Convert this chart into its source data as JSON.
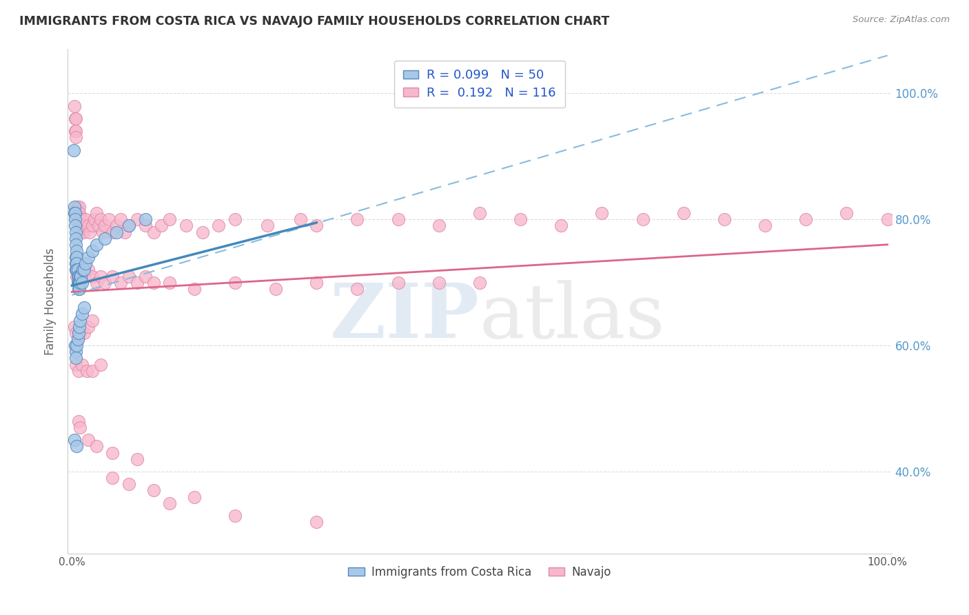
{
  "title": "IMMIGRANTS FROM COSTA RICA VS NAVAJO FAMILY HOUSEHOLDS CORRELATION CHART",
  "source": "Source: ZipAtlas.com",
  "ylabel": "Family Households",
  "ytick_labels": [
    "40.0%",
    "60.0%",
    "80.0%",
    "100.0%"
  ],
  "ytick_values": [
    0.4,
    0.6,
    0.8,
    1.0
  ],
  "legend_text1": "R = 0.099   N = 50",
  "legend_text2": "R =  0.192   N = 116",
  "blue_scatter_x": [
    0.002,
    0.003,
    0.003,
    0.004,
    0.004,
    0.004,
    0.005,
    0.005,
    0.005,
    0.005,
    0.005,
    0.005,
    0.006,
    0.006,
    0.006,
    0.006,
    0.007,
    0.007,
    0.007,
    0.008,
    0.008,
    0.008,
    0.009,
    0.009,
    0.01,
    0.01,
    0.011,
    0.012,
    0.013,
    0.015,
    0.017,
    0.02,
    0.025,
    0.03,
    0.04,
    0.055,
    0.07,
    0.09,
    0.004,
    0.005,
    0.005,
    0.006,
    0.007,
    0.008,
    0.009,
    0.01,
    0.012,
    0.015,
    0.003,
    0.006
  ],
  "blue_scatter_y": [
    0.91,
    0.82,
    0.81,
    0.81,
    0.8,
    0.79,
    0.78,
    0.77,
    0.76,
    0.74,
    0.73,
    0.72,
    0.75,
    0.74,
    0.73,
    0.72,
    0.72,
    0.71,
    0.7,
    0.71,
    0.7,
    0.69,
    0.7,
    0.69,
    0.71,
    0.7,
    0.71,
    0.7,
    0.72,
    0.72,
    0.73,
    0.74,
    0.75,
    0.76,
    0.77,
    0.78,
    0.79,
    0.8,
    0.6,
    0.59,
    0.58,
    0.6,
    0.61,
    0.62,
    0.63,
    0.64,
    0.65,
    0.66,
    0.45,
    0.44
  ],
  "pink_scatter_x": [
    0.003,
    0.004,
    0.004,
    0.005,
    0.005,
    0.005,
    0.006,
    0.006,
    0.007,
    0.007,
    0.008,
    0.008,
    0.009,
    0.009,
    0.01,
    0.01,
    0.011,
    0.012,
    0.013,
    0.014,
    0.015,
    0.017,
    0.02,
    0.022,
    0.025,
    0.028,
    0.03,
    0.033,
    0.035,
    0.038,
    0.04,
    0.045,
    0.05,
    0.055,
    0.06,
    0.065,
    0.07,
    0.08,
    0.09,
    0.1,
    0.11,
    0.12,
    0.14,
    0.16,
    0.18,
    0.2,
    0.24,
    0.28,
    0.3,
    0.35,
    0.4,
    0.45,
    0.5,
    0.55,
    0.6,
    0.65,
    0.7,
    0.75,
    0.8,
    0.85,
    0.9,
    0.95,
    1.0,
    0.005,
    0.006,
    0.007,
    0.008,
    0.01,
    0.012,
    0.015,
    0.02,
    0.025,
    0.03,
    0.035,
    0.04,
    0.05,
    0.06,
    0.07,
    0.08,
    0.09,
    0.1,
    0.12,
    0.15,
    0.2,
    0.25,
    0.3,
    0.35,
    0.4,
    0.45,
    0.5,
    0.003,
    0.005,
    0.007,
    0.01,
    0.015,
    0.02,
    0.025,
    0.005,
    0.008,
    0.012,
    0.018,
    0.025,
    0.035,
    0.05,
    0.07,
    0.1,
    0.15,
    0.008,
    0.01,
    0.02,
    0.03,
    0.05,
    0.08,
    0.12,
    0.2,
    0.3
  ],
  "pink_scatter_y": [
    0.98,
    0.96,
    0.94,
    0.96,
    0.94,
    0.93,
    0.82,
    0.81,
    0.82,
    0.8,
    0.81,
    0.8,
    0.82,
    0.81,
    0.79,
    0.78,
    0.79,
    0.8,
    0.79,
    0.78,
    0.79,
    0.8,
    0.79,
    0.78,
    0.79,
    0.8,
    0.81,
    0.79,
    0.8,
    0.78,
    0.79,
    0.8,
    0.78,
    0.79,
    0.8,
    0.78,
    0.79,
    0.8,
    0.79,
    0.78,
    0.79,
    0.8,
    0.79,
    0.78,
    0.79,
    0.8,
    0.79,
    0.8,
    0.79,
    0.8,
    0.8,
    0.79,
    0.81,
    0.8,
    0.79,
    0.81,
    0.8,
    0.81,
    0.8,
    0.79,
    0.8,
    0.81,
    0.8,
    0.72,
    0.71,
    0.72,
    0.7,
    0.71,
    0.72,
    0.71,
    0.72,
    0.71,
    0.7,
    0.71,
    0.7,
    0.71,
    0.7,
    0.71,
    0.7,
    0.71,
    0.7,
    0.7,
    0.69,
    0.7,
    0.69,
    0.7,
    0.69,
    0.7,
    0.7,
    0.7,
    0.63,
    0.62,
    0.61,
    0.62,
    0.62,
    0.63,
    0.64,
    0.57,
    0.56,
    0.57,
    0.56,
    0.56,
    0.57,
    0.39,
    0.38,
    0.37,
    0.36,
    0.48,
    0.47,
    0.45,
    0.44,
    0.43,
    0.42,
    0.35,
    0.33,
    0.32
  ],
  "blue_trend_x0": 0.0,
  "blue_trend_x1": 0.3,
  "blue_trend_y0": 0.695,
  "blue_trend_y1": 0.795,
  "pink_trend_x0": 0.0,
  "pink_trend_x1": 1.0,
  "pink_trend_y0": 0.685,
  "pink_trend_y1": 0.76,
  "dashed_trend_x0": 0.0,
  "dashed_trend_x1": 1.0,
  "dashed_trend_y0": 0.68,
  "dashed_trend_y1": 1.06,
  "xlim_min": -0.005,
  "xlim_max": 1.005,
  "ylim_min": 0.27,
  "ylim_max": 1.07,
  "blue_dot_color": "#a8c8e8",
  "blue_edge_color": "#5588bb",
  "pink_dot_color": "#f8b8cc",
  "pink_edge_color": "#dd88aa",
  "blue_line_color": "#4488bb",
  "pink_line_color": "#dd6688",
  "dashed_line_color": "#88bbdd",
  "grid_color": "#dddddd",
  "background_color": "#ffffff",
  "legend_text_color": "#2255cc",
  "right_tick_color": "#5599cc",
  "title_color": "#333333",
  "source_color": "#888888",
  "ylabel_color": "#666666"
}
